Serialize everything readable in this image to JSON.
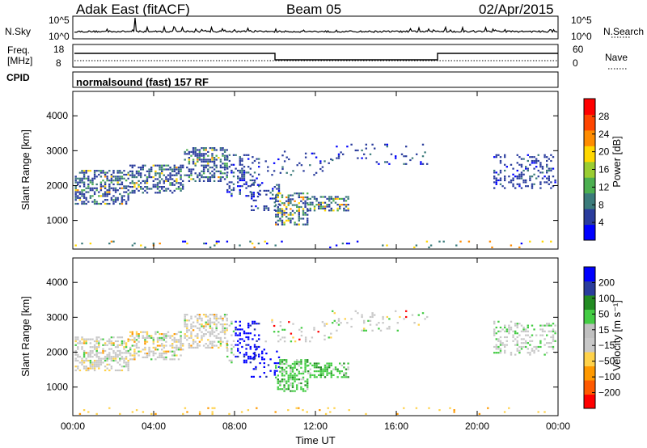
{
  "header": {
    "station": "Adak East (fitACF)",
    "beam": "Beam 05",
    "date": "02/Apr/2015"
  },
  "labels": {
    "nsky": "N.Sky",
    "nsearch": "N.Search",
    "freq_line1": "Freq.",
    "freq_line2": "[MHz]",
    "nave": "Nave",
    "cpid": "CPID",
    "program": "normalsound (fast) 157 RF",
    "nsky_ticks": [
      "10^5",
      "10^0"
    ],
    "nsearch_ticks": [
      "10^5",
      "10^0"
    ],
    "freq_ticks": [
      "18",
      "8"
    ],
    "nave_ticks": [
      "60",
      "0"
    ]
  },
  "colors": {
    "power": [
      "#0000ff",
      "#2a3c9c",
      "#3b7b7b",
      "#4caf50",
      "#9acd32",
      "#ffd700",
      "#ff8c00",
      "#ff4500",
      "#ff0000"
    ],
    "velocity": [
      "#ff0000",
      "#ff5a00",
      "#ff9900",
      "#ffd24a",
      "#c8c8c8",
      "#c0c0c0",
      "#44cc44",
      "#228b22",
      "#2a3c9c",
      "#0000ff"
    ]
  },
  "chart_data": [
    {
      "type": "heatmap",
      "name": "power-panel",
      "xlabel": "",
      "ylabel": "Slant Range [km]",
      "x_ticks": [
        "00:00",
        "04:00",
        "08:00",
        "12:00",
        "16:00",
        "20:00",
        "00:00"
      ],
      "y_ticks": [
        1000,
        2000,
        3000,
        4000
      ],
      "ylim": [
        180,
        4700
      ],
      "colorbar_label": "Power [dB]",
      "colorbar_ticks": [
        4,
        8,
        12,
        16,
        20,
        24,
        28
      ],
      "colorbar_range": [
        0,
        30
      ]
    },
    {
      "type": "heatmap",
      "name": "velocity-panel",
      "xlabel": "Time UT",
      "ylabel": "Slant Range [km]",
      "x_ticks": [
        "00:00",
        "04:00",
        "08:00",
        "12:00",
        "16:00",
        "20:00",
        "00:00"
      ],
      "y_ticks": [
        1000,
        2000,
        3000,
        4000
      ],
      "ylim": [
        180,
        4700
      ],
      "colorbar_label": "Velocity [m s⁻¹]",
      "colorbar_ticks": [
        "200",
        "100",
        "50",
        "15",
        "−15",
        "−50",
        "−100",
        "−200"
      ]
    }
  ]
}
